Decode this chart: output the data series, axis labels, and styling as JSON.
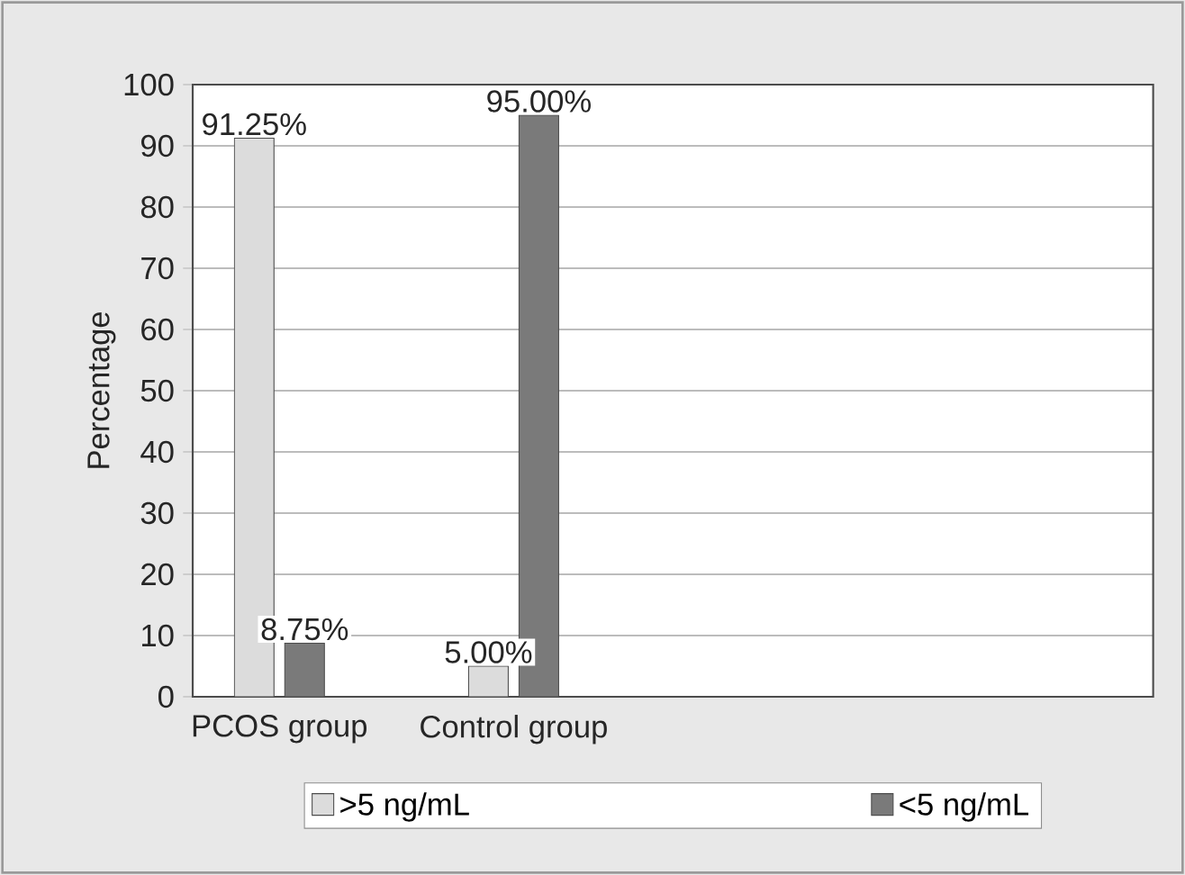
{
  "chart_data": {
    "type": "bar",
    "ylabel": "Percentage",
    "categories": [
      "PCOS group",
      "Control group"
    ],
    "series": [
      {
        "name": ">5 ng/mL",
        "color": "#dcdcdc",
        "values": [
          91.25,
          5.0
        ],
        "value_labels": [
          "91.25%",
          "5.00%"
        ]
      },
      {
        "name": "<5 ng/mL",
        "color": "#7a7a7a",
        "values": [
          8.75,
          95.0
        ],
        "value_labels": [
          "8.75%",
          "95.00%"
        ]
      }
    ],
    "ylim": [
      0,
      100
    ],
    "yticks": [
      0,
      10,
      20,
      30,
      40,
      50,
      60,
      70,
      80,
      90,
      100
    ],
    "grid": "y",
    "legend": "bottom"
  }
}
